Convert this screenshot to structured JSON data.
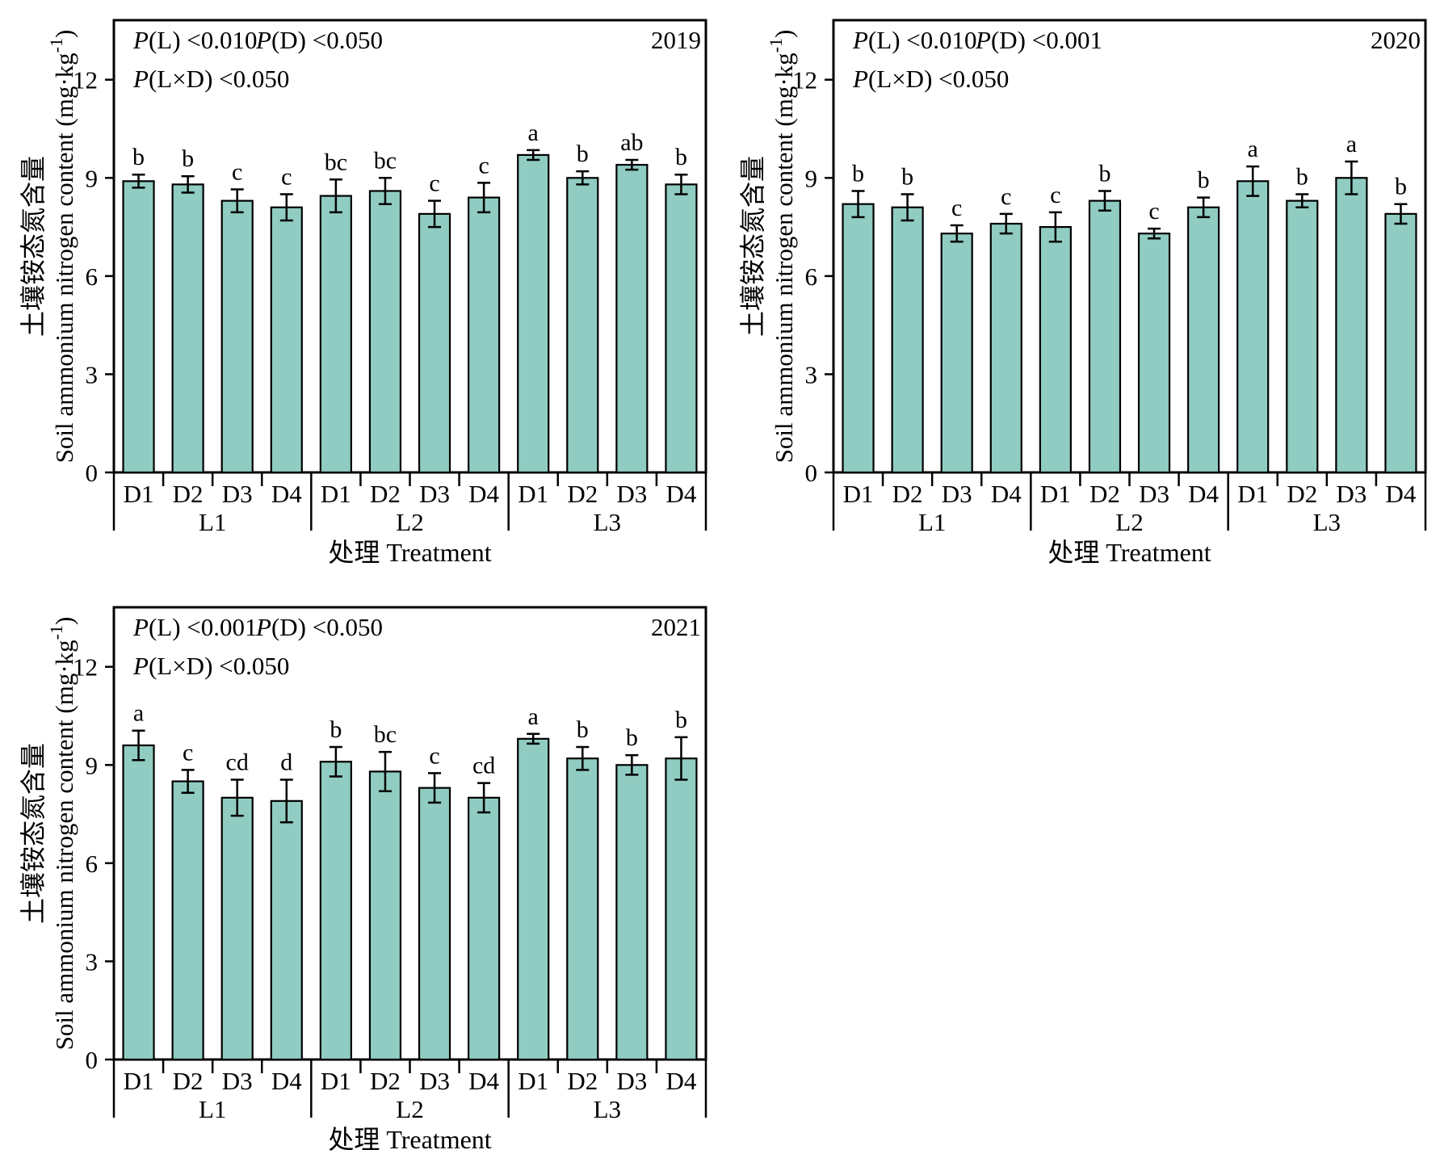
{
  "figure": {
    "background": "#ffffff",
    "bar_fill": "#90CCC1",
    "bar_stroke": "#000000",
    "axis_color": "#000000"
  },
  "chart_data": [
    {
      "type": "bar",
      "year": "2019",
      "p_values": [
        "P(L) <0.010",
        "P(D) <0.050",
        "P(L×D) <0.050"
      ],
      "xlabel": "处理 Treatment",
      "ylabel_zh": "土壤铵态氮含量",
      "ylabel_en_pre": "Soil ammonium nitrogen content (mg·kg",
      "ylabel_en_sup": "-1",
      "ylabel_en_post": ")",
      "ylim": [
        0,
        13.8
      ],
      "yticks": [
        0,
        3,
        6,
        9,
        12
      ],
      "categories": [
        "D1",
        "D2",
        "D3",
        "D4"
      ],
      "grid": false,
      "groups": [
        {
          "label": "L1",
          "bars": [
            {
              "label": "D1",
              "value": 8.9,
              "error": 0.2,
              "sig": "b"
            },
            {
              "label": "D2",
              "value": 8.8,
              "error": 0.25,
              "sig": "b"
            },
            {
              "label": "D3",
              "value": 8.3,
              "error": 0.35,
              "sig": "c"
            },
            {
              "label": "D4",
              "value": 8.1,
              "error": 0.4,
              "sig": "c"
            }
          ]
        },
        {
          "label": "L2",
          "bars": [
            {
              "label": "D1",
              "value": 8.45,
              "error": 0.5,
              "sig": "bc"
            },
            {
              "label": "D2",
              "value": 8.6,
              "error": 0.4,
              "sig": "bc"
            },
            {
              "label": "D3",
              "value": 7.9,
              "error": 0.4,
              "sig": "c"
            },
            {
              "label": "D4",
              "value": 8.4,
              "error": 0.45,
              "sig": "c"
            }
          ]
        },
        {
          "label": "L3",
          "bars": [
            {
              "label": "D1",
              "value": 9.7,
              "error": 0.15,
              "sig": "a"
            },
            {
              "label": "D2",
              "value": 9.0,
              "error": 0.2,
              "sig": "b"
            },
            {
              "label": "D3",
              "value": 9.4,
              "error": 0.15,
              "sig": "ab"
            },
            {
              "label": "D4",
              "value": 8.8,
              "error": 0.3,
              "sig": "b"
            }
          ]
        }
      ]
    },
    {
      "type": "bar",
      "year": "2020",
      "p_values": [
        "P(L) <0.010",
        "P(D) <0.001",
        "P(L×D) <0.050"
      ],
      "xlabel": "处理 Treatment",
      "ylabel_zh": "土壤铵态氮含量",
      "ylabel_en_pre": "Soil ammonium nitrogen content (mg·kg",
      "ylabel_en_sup": "-1",
      "ylabel_en_post": ")",
      "ylim": [
        0,
        13.8
      ],
      "yticks": [
        0,
        3,
        6,
        9,
        12
      ],
      "categories": [
        "D1",
        "D2",
        "D3",
        "D4"
      ],
      "grid": false,
      "groups": [
        {
          "label": "L1",
          "bars": [
            {
              "label": "D1",
              "value": 8.2,
              "error": 0.4,
              "sig": "b"
            },
            {
              "label": "D2",
              "value": 8.1,
              "error": 0.4,
              "sig": "b"
            },
            {
              "label": "D3",
              "value": 7.3,
              "error": 0.25,
              "sig": "c"
            },
            {
              "label": "D4",
              "value": 7.6,
              "error": 0.3,
              "sig": "c"
            }
          ]
        },
        {
          "label": "L2",
          "bars": [
            {
              "label": "D1",
              "value": 7.5,
              "error": 0.45,
              "sig": "c"
            },
            {
              "label": "D2",
              "value": 8.3,
              "error": 0.3,
              "sig": "b"
            },
            {
              "label": "D3",
              "value": 7.3,
              "error": 0.15,
              "sig": "c"
            },
            {
              "label": "D4",
              "value": 8.1,
              "error": 0.3,
              "sig": "b"
            }
          ]
        },
        {
          "label": "L3",
          "bars": [
            {
              "label": "D1",
              "value": 8.9,
              "error": 0.45,
              "sig": "a"
            },
            {
              "label": "D2",
              "value": 8.3,
              "error": 0.2,
              "sig": "b"
            },
            {
              "label": "D3",
              "value": 9.0,
              "error": 0.5,
              "sig": "a"
            },
            {
              "label": "D4",
              "value": 7.9,
              "error": 0.3,
              "sig": "b"
            }
          ]
        }
      ]
    },
    {
      "type": "bar",
      "year": "2021",
      "p_values": [
        "P(L) <0.001",
        "P(D) <0.050",
        "P(L×D) <0.050"
      ],
      "xlabel": "处理 Treatment",
      "ylabel_zh": "土壤铵态氮含量",
      "ylabel_en_pre": "Soil ammonium nitrogen content (mg·kg",
      "ylabel_en_sup": "-1",
      "ylabel_en_post": ")",
      "ylim": [
        0,
        13.8
      ],
      "yticks": [
        0,
        3,
        6,
        9,
        12
      ],
      "categories": [
        "D1",
        "D2",
        "D3",
        "D4"
      ],
      "grid": false,
      "groups": [
        {
          "label": "L1",
          "bars": [
            {
              "label": "D1",
              "value": 9.6,
              "error": 0.45,
              "sig": "a"
            },
            {
              "label": "D2",
              "value": 8.5,
              "error": 0.35,
              "sig": "c"
            },
            {
              "label": "D3",
              "value": 8.0,
              "error": 0.55,
              "sig": "cd"
            },
            {
              "label": "D4",
              "value": 7.9,
              "error": 0.65,
              "sig": "d"
            }
          ]
        },
        {
          "label": "L2",
          "bars": [
            {
              "label": "D1",
              "value": 9.1,
              "error": 0.45,
              "sig": "b"
            },
            {
              "label": "D2",
              "value": 8.8,
              "error": 0.6,
              "sig": "bc"
            },
            {
              "label": "D3",
              "value": 8.3,
              "error": 0.45,
              "sig": "c"
            },
            {
              "label": "D4",
              "value": 8.0,
              "error": 0.45,
              "sig": "cd"
            }
          ]
        },
        {
          "label": "L3",
          "bars": [
            {
              "label": "D1",
              "value": 9.8,
              "error": 0.15,
              "sig": "a"
            },
            {
              "label": "D2",
              "value": 9.2,
              "error": 0.35,
              "sig": "b"
            },
            {
              "label": "D3",
              "value": 9.0,
              "error": 0.3,
              "sig": "b"
            },
            {
              "label": "D4",
              "value": 9.2,
              "error": 0.65,
              "sig": "b"
            }
          ]
        }
      ]
    }
  ]
}
